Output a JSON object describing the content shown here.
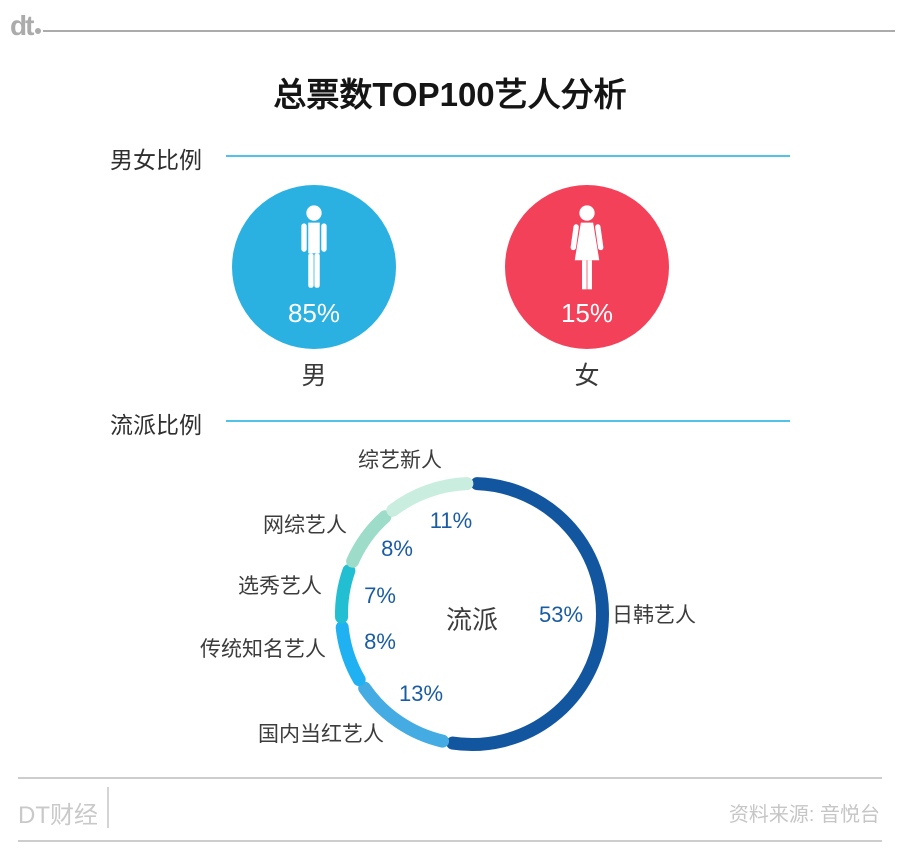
{
  "logo": {
    "text": "dt"
  },
  "title": "总票数TOP100艺人分析",
  "sections": {
    "gender": {
      "heading": "男女比例"
    },
    "genre": {
      "heading": "流派比例"
    }
  },
  "theme": {
    "accent_line": "#52C2E9",
    "percent_text": "#1A5CA3"
  },
  "chart_data": [
    {
      "type": "pie",
      "title": "男女比例",
      "categories": [
        "男",
        "女"
      ],
      "values": [
        85,
        15
      ],
      "value_labels": [
        "85%",
        "15%"
      ],
      "colors": [
        "#2AB1E1",
        "#F4415A"
      ],
      "icons": [
        "male-icon",
        "female-icon"
      ]
    },
    {
      "type": "pie",
      "title": "流派比例",
      "center_label": "流派",
      "direction": "clockwise",
      "start_angle_deg": 0,
      "gap_deg": 4.5,
      "stroke_width": 13,
      "segments": [
        {
          "label": "日韩艺人",
          "value": 53,
          "value_label": "53%",
          "color": "#1356A0"
        },
        {
          "label": "国内当红艺人",
          "value": 13,
          "value_label": "13%",
          "color": "#45ACE3"
        },
        {
          "label": "传统知名艺人",
          "value": 8,
          "value_label": "8%",
          "color": "#1FB1F2"
        },
        {
          "label": "选秀艺人",
          "value": 7,
          "value_label": "7%",
          "color": "#22BFD3"
        },
        {
          "label": "网综艺人",
          "value": 8,
          "value_label": "8%",
          "color": "#9CDCC8"
        },
        {
          "label": "综艺新人",
          "value": 11,
          "value_label": "11%",
          "color": "#C9EEDF"
        }
      ]
    }
  ],
  "footer": {
    "brand": "DT财经",
    "source": "资料来源: 音悦台"
  }
}
